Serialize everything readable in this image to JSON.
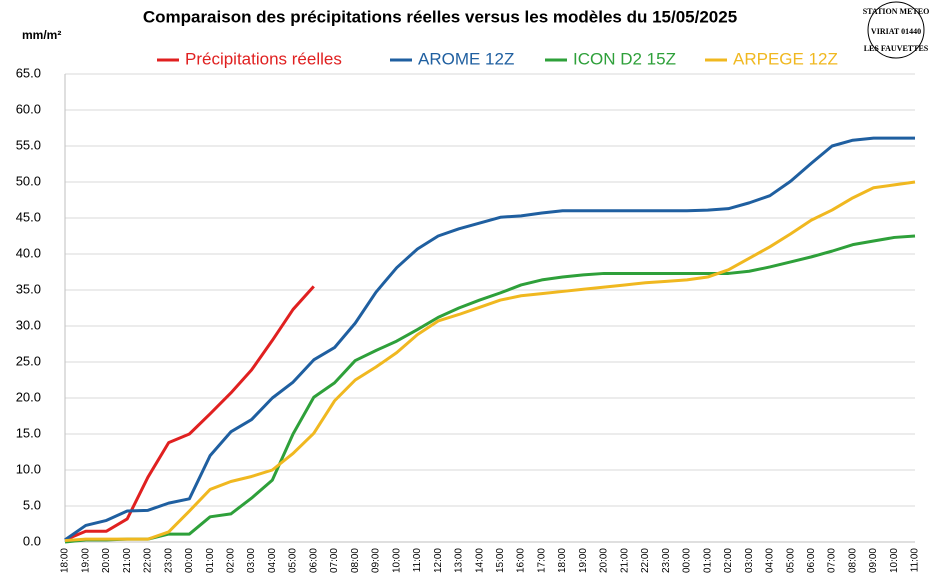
{
  "chart_data": {
    "type": "line",
    "title": "Comparaison des précipitations  réelles versus les modèles du 15/05/2025",
    "y_label": "mm/m²",
    "stamp": [
      "STATION METEO",
      "VIRIAT 01440",
      "LES FAUVETTES"
    ],
    "categories": [
      "18:00",
      "19:00",
      "20:00",
      "21:00",
      "22:00",
      "23:00",
      "00:00",
      "01:00",
      "02:00",
      "03:00",
      "04:00",
      "05:00",
      "06:00",
      "07:00",
      "08:00",
      "09:00",
      "10:00",
      "11:00",
      "12:00",
      "13:00",
      "14:00",
      "15:00",
      "16:00",
      "17:00",
      "18:00",
      "19:00",
      "20:00",
      "21:00",
      "22:00",
      "23:00",
      "00:00",
      "01:00",
      "02:00",
      "03:00",
      "04:00",
      "05:00",
      "06:00",
      "07:00",
      "08:00",
      "09:00",
      "10:00",
      "11:00"
    ],
    "series": [
      {
        "name": "Précipitations réelles",
        "color": "#e02020",
        "values": [
          0.3,
          1.5,
          1.5,
          3.2,
          9,
          13.8,
          15,
          17.8,
          20.7,
          23.9,
          28,
          32.3,
          35.5,
          null,
          null,
          null,
          null,
          null,
          null,
          null,
          null,
          null,
          null,
          null,
          null,
          null,
          null,
          null,
          null,
          null,
          null,
          null,
          null,
          null,
          null,
          null,
          null,
          null,
          null,
          null,
          null,
          null
        ]
      },
      {
        "name": "AROME 12Z",
        "color": "#1f5fa0",
        "values": [
          0.3,
          2.3,
          3,
          4.3,
          4.4,
          5.4,
          6,
          12,
          15.3,
          17,
          20,
          22.2,
          25.3,
          27,
          30.4,
          34.7,
          38.1,
          40.7,
          42.5,
          43.5,
          44.3,
          45.1,
          45.3,
          45.7,
          46,
          46,
          46,
          46,
          46,
          46,
          46,
          46.1,
          46.3,
          47.1,
          48.1,
          50.1,
          52.6,
          55,
          55.8,
          56.1,
          56.1,
          56.1
        ]
      },
      {
        "name": "ICON D2 15Z",
        "color": "#2ea03a",
        "values": [
          0,
          0.3,
          0.3,
          0.4,
          0.4,
          1.1,
          1.1,
          3.5,
          3.9,
          6.1,
          8.6,
          15,
          20.1,
          22.1,
          25.2,
          26.6,
          27.9,
          29.5,
          31.2,
          32.5,
          33.6,
          34.6,
          35.7,
          36.4,
          36.8,
          37.1,
          37.3,
          37.3,
          37.3,
          37.3,
          37.3,
          37.3,
          37.3,
          37.6,
          38.2,
          38.9,
          39.6,
          40.4,
          41.3,
          41.8,
          42.3,
          42.5
        ]
      },
      {
        "name": "ARPEGE 12Z",
        "color": "#f0b820",
        "values": [
          0.2,
          0.4,
          0.4,
          0.4,
          0.4,
          1.4,
          4.3,
          7.3,
          8.4,
          9.1,
          10,
          12.3,
          15.1,
          19.6,
          22.5,
          24.3,
          26.3,
          28.8,
          30.7,
          31.6,
          32.6,
          33.6,
          34.2,
          34.5,
          34.8,
          35.1,
          35.4,
          35.7,
          36,
          36.2,
          36.4,
          36.8,
          37.8,
          39.4,
          41,
          42.8,
          44.7,
          46.1,
          47.8,
          49.2,
          49.6,
          50
        ]
      }
    ],
    "ylim": [
      0,
      65
    ],
    "yticks": [
      {
        "value": 0,
        "label": "0.0"
      },
      {
        "value": 5,
        "label": "5.0"
      },
      {
        "value": 10,
        "label": "10.0"
      },
      {
        "value": 15,
        "label": "15.0"
      },
      {
        "value": 20,
        "label": "20.0"
      },
      {
        "value": 25,
        "label": "25.0"
      },
      {
        "value": 30,
        "label": "30.0"
      },
      {
        "value": 35,
        "label": "35.0"
      },
      {
        "value": 40,
        "label": "40.0"
      },
      {
        "value": 45,
        "label": "45.0"
      },
      {
        "value": 50,
        "label": "50.0"
      },
      {
        "value": 55,
        "label": "55.0"
      },
      {
        "value": 60,
        "label": "60.0"
      },
      {
        "value": 65,
        "label": "65.0"
      }
    ],
    "grid": true
  }
}
